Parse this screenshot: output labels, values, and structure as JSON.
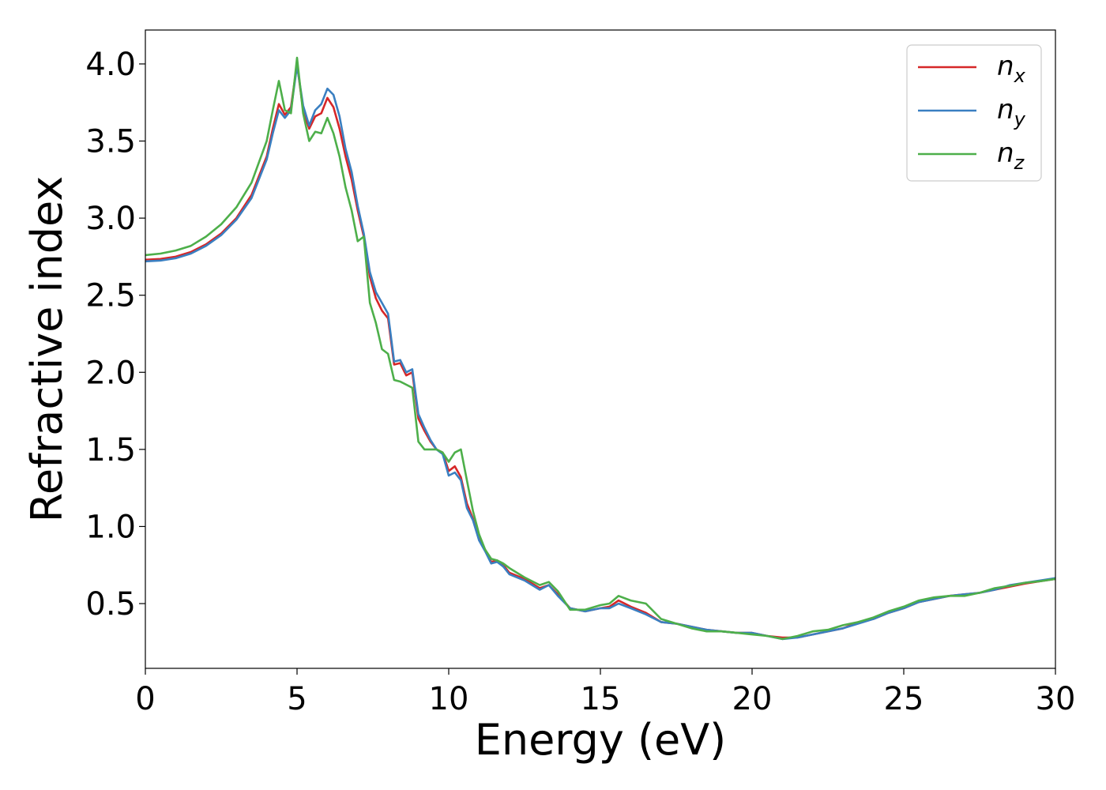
{
  "chart_data": {
    "type": "line",
    "xlabel": "Energy (eV)",
    "ylabel": "Refractive index",
    "xlim": [
      0,
      30
    ],
    "ylim": [
      0.08,
      4.22
    ],
    "xticks": [
      "0",
      "5",
      "10",
      "15",
      "20",
      "25",
      "30"
    ],
    "yticks": [
      "0.5",
      "1.0",
      "1.5",
      "2.0",
      "2.5",
      "3.0",
      "3.5",
      "4.0"
    ],
    "grid": false,
    "legend_position": "top-right",
    "series": [
      {
        "name": "n_x",
        "label_main": "n",
        "label_sub": "x",
        "color": "#d62728",
        "points": [
          [
            0,
            2.73
          ],
          [
            0.5,
            2.735
          ],
          [
            1,
            2.75
          ],
          [
            1.5,
            2.78
          ],
          [
            2,
            2.83
          ],
          [
            2.5,
            2.9
          ],
          [
            3,
            3.0
          ],
          [
            3.5,
            3.15
          ],
          [
            4,
            3.4
          ],
          [
            4.2,
            3.58
          ],
          [
            4.4,
            3.74
          ],
          [
            4.6,
            3.67
          ],
          [
            4.8,
            3.72
          ],
          [
            5.0,
            4.0
          ],
          [
            5.2,
            3.7
          ],
          [
            5.4,
            3.58
          ],
          [
            5.6,
            3.66
          ],
          [
            5.8,
            3.68
          ],
          [
            6.0,
            3.78
          ],
          [
            6.2,
            3.72
          ],
          [
            6.4,
            3.58
          ],
          [
            6.6,
            3.4
          ],
          [
            6.8,
            3.25
          ],
          [
            7.0,
            3.05
          ],
          [
            7.2,
            2.88
          ],
          [
            7.4,
            2.62
          ],
          [
            7.6,
            2.48
          ],
          [
            7.8,
            2.4
          ],
          [
            8.0,
            2.35
          ],
          [
            8.2,
            2.05
          ],
          [
            8.4,
            2.06
          ],
          [
            8.6,
            1.98
          ],
          [
            8.8,
            2.0
          ],
          [
            9.0,
            1.7
          ],
          [
            9.2,
            1.62
          ],
          [
            9.4,
            1.55
          ],
          [
            9.6,
            1.5
          ],
          [
            9.8,
            1.48
          ],
          [
            10.0,
            1.36
          ],
          [
            10.2,
            1.39
          ],
          [
            10.4,
            1.32
          ],
          [
            10.6,
            1.15
          ],
          [
            10.8,
            1.05
          ],
          [
            11.0,
            0.92
          ],
          [
            11.2,
            0.85
          ],
          [
            11.4,
            0.77
          ],
          [
            11.6,
            0.78
          ],
          [
            11.8,
            0.75
          ],
          [
            12.0,
            0.7
          ],
          [
            12.5,
            0.66
          ],
          [
            13.0,
            0.6
          ],
          [
            13.3,
            0.62
          ],
          [
            13.6,
            0.56
          ],
          [
            14.0,
            0.47
          ],
          [
            14.5,
            0.45
          ],
          [
            15.0,
            0.47
          ],
          [
            15.3,
            0.48
          ],
          [
            15.6,
            0.52
          ],
          [
            16.0,
            0.48
          ],
          [
            16.5,
            0.44
          ],
          [
            17.0,
            0.38
          ],
          [
            17.5,
            0.37
          ],
          [
            18.0,
            0.35
          ],
          [
            18.5,
            0.33
          ],
          [
            19.0,
            0.32
          ],
          [
            19.5,
            0.31
          ],
          [
            20.0,
            0.31
          ],
          [
            20.5,
            0.29
          ],
          [
            21.0,
            0.28
          ],
          [
            21.5,
            0.28
          ],
          [
            22.0,
            0.3
          ],
          [
            22.5,
            0.32
          ],
          [
            23.0,
            0.34
          ],
          [
            23.5,
            0.38
          ],
          [
            24.0,
            0.4
          ],
          [
            24.5,
            0.44
          ],
          [
            25.0,
            0.47
          ],
          [
            25.5,
            0.51
          ],
          [
            26.0,
            0.53
          ],
          [
            26.5,
            0.55
          ],
          [
            27.0,
            0.56
          ],
          [
            27.5,
            0.57
          ],
          [
            28.0,
            0.59
          ],
          [
            28.5,
            0.61
          ],
          [
            29.0,
            0.63
          ],
          [
            29.5,
            0.645
          ],
          [
            30,
            0.66
          ]
        ]
      },
      {
        "name": "n_y",
        "label_main": "n",
        "label_sub": "y",
        "color": "#3a7fc1",
        "points": [
          [
            0,
            2.72
          ],
          [
            0.5,
            2.725
          ],
          [
            1,
            2.74
          ],
          [
            1.5,
            2.77
          ],
          [
            2,
            2.82
          ],
          [
            2.5,
            2.89
          ],
          [
            3,
            2.99
          ],
          [
            3.5,
            3.13
          ],
          [
            4,
            3.38
          ],
          [
            4.2,
            3.55
          ],
          [
            4.4,
            3.7
          ],
          [
            4.6,
            3.65
          ],
          [
            4.8,
            3.7
          ],
          [
            5.0,
            3.99
          ],
          [
            5.2,
            3.73
          ],
          [
            5.4,
            3.6
          ],
          [
            5.6,
            3.7
          ],
          [
            5.8,
            3.74
          ],
          [
            6.0,
            3.84
          ],
          [
            6.2,
            3.8
          ],
          [
            6.4,
            3.66
          ],
          [
            6.6,
            3.45
          ],
          [
            6.8,
            3.3
          ],
          [
            7.0,
            3.08
          ],
          [
            7.2,
            2.9
          ],
          [
            7.4,
            2.65
          ],
          [
            7.6,
            2.52
          ],
          [
            7.8,
            2.45
          ],
          [
            8.0,
            2.38
          ],
          [
            8.2,
            2.07
          ],
          [
            8.4,
            2.08
          ],
          [
            8.6,
            2.0
          ],
          [
            8.8,
            2.02
          ],
          [
            9.0,
            1.73
          ],
          [
            9.2,
            1.64
          ],
          [
            9.4,
            1.56
          ],
          [
            9.6,
            1.5
          ],
          [
            9.8,
            1.47
          ],
          [
            10.0,
            1.33
          ],
          [
            10.2,
            1.35
          ],
          [
            10.4,
            1.3
          ],
          [
            10.6,
            1.12
          ],
          [
            10.8,
            1.04
          ],
          [
            11.0,
            0.91
          ],
          [
            11.2,
            0.84
          ],
          [
            11.4,
            0.76
          ],
          [
            11.6,
            0.77
          ],
          [
            11.8,
            0.74
          ],
          [
            12.0,
            0.69
          ],
          [
            12.5,
            0.65
          ],
          [
            13.0,
            0.59
          ],
          [
            13.3,
            0.62
          ],
          [
            13.6,
            0.55
          ],
          [
            14.0,
            0.47
          ],
          [
            14.5,
            0.45
          ],
          [
            15.0,
            0.47
          ],
          [
            15.3,
            0.47
          ],
          [
            15.6,
            0.5
          ],
          [
            16.0,
            0.47
          ],
          [
            16.5,
            0.43
          ],
          [
            17.0,
            0.38
          ],
          [
            17.5,
            0.37
          ],
          [
            18.0,
            0.35
          ],
          [
            18.5,
            0.33
          ],
          [
            19.0,
            0.32
          ],
          [
            19.5,
            0.31
          ],
          [
            20.0,
            0.31
          ],
          [
            20.5,
            0.29
          ],
          [
            21.0,
            0.27
          ],
          [
            21.5,
            0.28
          ],
          [
            22.0,
            0.3
          ],
          [
            22.5,
            0.32
          ],
          [
            23.0,
            0.34
          ],
          [
            23.5,
            0.37
          ],
          [
            24.0,
            0.4
          ],
          [
            24.5,
            0.44
          ],
          [
            25.0,
            0.47
          ],
          [
            25.5,
            0.51
          ],
          [
            26.0,
            0.53
          ],
          [
            26.5,
            0.55
          ],
          [
            27.0,
            0.56
          ],
          [
            27.5,
            0.57
          ],
          [
            28.0,
            0.59
          ],
          [
            28.5,
            0.62
          ],
          [
            29.0,
            0.635
          ],
          [
            29.5,
            0.65
          ],
          [
            30,
            0.665
          ]
        ]
      },
      {
        "name": "n_z",
        "label_main": "n",
        "label_sub": "z",
        "color": "#4daf4a",
        "points": [
          [
            0,
            2.76
          ],
          [
            0.5,
            2.77
          ],
          [
            1,
            2.79
          ],
          [
            1.5,
            2.82
          ],
          [
            2,
            2.88
          ],
          [
            2.5,
            2.96
          ],
          [
            3,
            3.07
          ],
          [
            3.5,
            3.23
          ],
          [
            4,
            3.5
          ],
          [
            4.2,
            3.7
          ],
          [
            4.4,
            3.89
          ],
          [
            4.6,
            3.7
          ],
          [
            4.8,
            3.68
          ],
          [
            5.0,
            4.04
          ],
          [
            5.2,
            3.68
          ],
          [
            5.4,
            3.5
          ],
          [
            5.6,
            3.56
          ],
          [
            5.8,
            3.55
          ],
          [
            6.0,
            3.65
          ],
          [
            6.2,
            3.55
          ],
          [
            6.4,
            3.4
          ],
          [
            6.6,
            3.2
          ],
          [
            6.8,
            3.05
          ],
          [
            7.0,
            2.85
          ],
          [
            7.2,
            2.88
          ],
          [
            7.4,
            2.45
          ],
          [
            7.6,
            2.32
          ],
          [
            7.8,
            2.15
          ],
          [
            8.0,
            2.12
          ],
          [
            8.2,
            1.95
          ],
          [
            8.4,
            1.94
          ],
          [
            8.6,
            1.92
          ],
          [
            8.8,
            1.9
          ],
          [
            9.0,
            1.55
          ],
          [
            9.2,
            1.5
          ],
          [
            9.4,
            1.5
          ],
          [
            9.6,
            1.5
          ],
          [
            9.8,
            1.48
          ],
          [
            10.0,
            1.42
          ],
          [
            10.2,
            1.48
          ],
          [
            10.4,
            1.5
          ],
          [
            10.6,
            1.3
          ],
          [
            10.8,
            1.1
          ],
          [
            11.0,
            0.95
          ],
          [
            11.2,
            0.85
          ],
          [
            11.4,
            0.79
          ],
          [
            11.6,
            0.78
          ],
          [
            11.8,
            0.76
          ],
          [
            12.0,
            0.73
          ],
          [
            12.5,
            0.67
          ],
          [
            13.0,
            0.62
          ],
          [
            13.3,
            0.64
          ],
          [
            13.6,
            0.58
          ],
          [
            14.0,
            0.46
          ],
          [
            14.5,
            0.46
          ],
          [
            15.0,
            0.49
          ],
          [
            15.3,
            0.5
          ],
          [
            15.6,
            0.55
          ],
          [
            16.0,
            0.52
          ],
          [
            16.5,
            0.5
          ],
          [
            17.0,
            0.4
          ],
          [
            17.5,
            0.37
          ],
          [
            18.0,
            0.34
          ],
          [
            18.5,
            0.32
          ],
          [
            19.0,
            0.32
          ],
          [
            19.5,
            0.31
          ],
          [
            20.0,
            0.3
          ],
          [
            20.5,
            0.29
          ],
          [
            21.0,
            0.27
          ],
          [
            21.5,
            0.29
          ],
          [
            22.0,
            0.32
          ],
          [
            22.5,
            0.33
          ],
          [
            23.0,
            0.36
          ],
          [
            23.5,
            0.38
          ],
          [
            24.0,
            0.41
          ],
          [
            24.5,
            0.45
          ],
          [
            25.0,
            0.48
          ],
          [
            25.5,
            0.52
          ],
          [
            26.0,
            0.54
          ],
          [
            26.5,
            0.55
          ],
          [
            27.0,
            0.55
          ],
          [
            27.5,
            0.57
          ],
          [
            28.0,
            0.6
          ],
          [
            28.5,
            0.615
          ],
          [
            29.0,
            0.635
          ],
          [
            29.5,
            0.645
          ],
          [
            30,
            0.66
          ]
        ]
      }
    ]
  }
}
